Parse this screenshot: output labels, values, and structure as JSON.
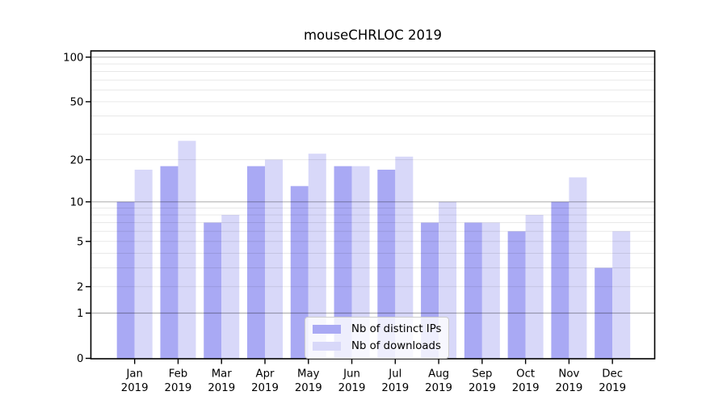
{
  "chart_data": {
    "type": "bar",
    "title": "mouseCHRLOC 2019",
    "x_tick_second_line": "2019",
    "categories": [
      "Jan",
      "Feb",
      "Mar",
      "Apr",
      "May",
      "Jun",
      "Jul",
      "Aug",
      "Sep",
      "Oct",
      "Nov",
      "Dec"
    ],
    "series": [
      {
        "name": "Nb of distinct IPs",
        "color": "#a9a9f4",
        "values": [
          10,
          18,
          7,
          18,
          13,
          18,
          17,
          7,
          7,
          6,
          10,
          3
        ]
      },
      {
        "name": "Nb of downloads",
        "color": "#d8d8f9",
        "values": [
          17,
          27,
          8,
          20,
          22,
          18,
          21,
          10,
          7,
          8,
          15,
          6
        ]
      }
    ],
    "y_axis": {
      "scale": "log10(value+1)",
      "tick_labels": [
        100,
        50,
        20,
        10,
        5,
        2,
        1,
        0
      ],
      "major_gridlines": [
        100,
        10,
        1
      ],
      "minor_gridlines": [
        90,
        80,
        70,
        60,
        50,
        40,
        30,
        20,
        9,
        8,
        7,
        6,
        5,
        4,
        3,
        2
      ]
    },
    "legend": {
      "position": "inside-bottom-center"
    },
    "colors": {
      "axis": "#000000",
      "major_grid": "rgba(0,0,0,0.30)",
      "minor_grid": "rgba(0,0,0,0.09)",
      "background": "#ffffff"
    }
  }
}
